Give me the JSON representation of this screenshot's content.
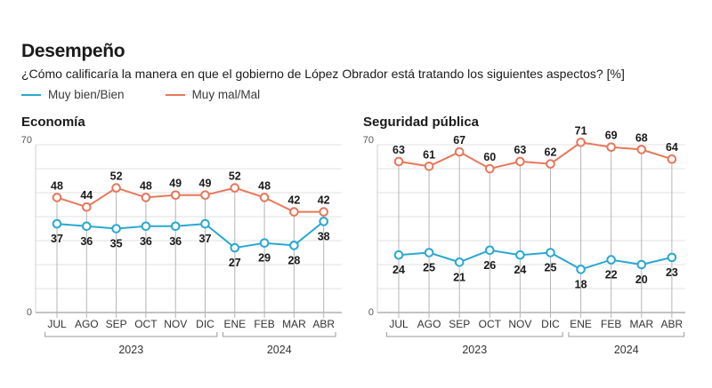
{
  "header": {
    "title": "Desempeño",
    "subtitle": "¿Cómo calificaría la manera en que el gobierno de López Obrador está tratando los siguientes aspectos? [%]"
  },
  "legend": [
    {
      "label": "Muy bien/Bien",
      "color": "#29a8d0"
    },
    {
      "label": "Muy mal/Mal",
      "color": "#e8775a"
    }
  ],
  "chart_data": [
    {
      "type": "line",
      "title": "Economía",
      "categories": [
        "JUL",
        "AGO",
        "SEP",
        "OCT",
        "NOV",
        "DIC",
        "ENE",
        "FEB",
        "MAR",
        "ABR"
      ],
      "years": [
        {
          "label": "2023",
          "span": [
            0,
            5
          ]
        },
        {
          "label": "2024",
          "span": [
            6,
            9
          ]
        }
      ],
      "ylim": [
        0,
        70
      ],
      "yticks": [
        0,
        70
      ],
      "series": [
        {
          "name": "Muy bien/Bien",
          "color": "#29a8d0",
          "values": [
            37,
            36,
            35,
            36,
            36,
            37,
            27,
            29,
            28,
            38
          ]
        },
        {
          "name": "Muy mal/Mal",
          "color": "#e8775a",
          "values": [
            48,
            44,
            52,
            48,
            49,
            49,
            52,
            48,
            42,
            42
          ]
        }
      ]
    },
    {
      "type": "line",
      "title": "Seguridad pública",
      "categories": [
        "JUL",
        "AGO",
        "SEP",
        "OCT",
        "NOV",
        "DIC",
        "ENE",
        "FEB",
        "MAR",
        "ABR"
      ],
      "years": [
        {
          "label": "2023",
          "span": [
            0,
            5
          ]
        },
        {
          "label": "2024",
          "span": [
            6,
            9
          ]
        }
      ],
      "ylim": [
        0,
        70
      ],
      "yticks": [
        0,
        70
      ],
      "series": [
        {
          "name": "Muy bien/Bien",
          "color": "#29a8d0",
          "values": [
            24,
            25,
            21,
            26,
            24,
            25,
            18,
            22,
            20,
            23
          ]
        },
        {
          "name": "Muy mal/Mal",
          "color": "#e8775a",
          "values": [
            63,
            61,
            67,
            60,
            63,
            62,
            71,
            69,
            68,
            64
          ]
        }
      ]
    }
  ]
}
